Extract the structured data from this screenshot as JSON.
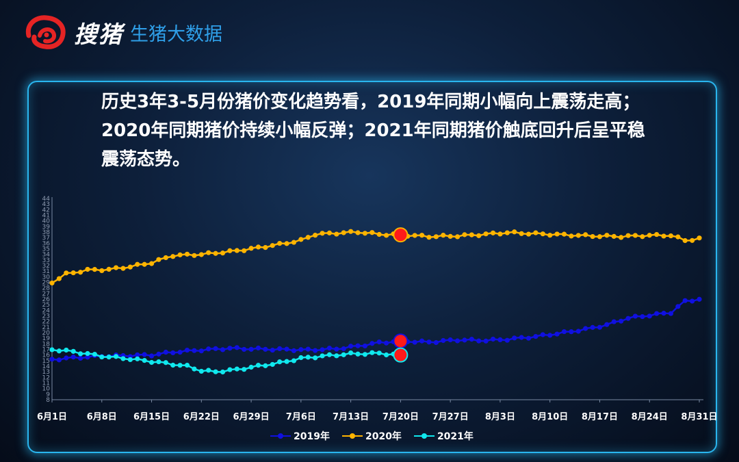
{
  "logo": {
    "name": "搜猪",
    "subtitle": "生猪大数据"
  },
  "headline": "历史3年3-5月份猪价变化趋势看，2019年同期小幅向上震荡走高；2020年同期猪价持续小幅反弹；2021年同期猪价触底回升后呈平稳震荡态势。",
  "chart_data": {
    "type": "line",
    "title": "",
    "xlabel": "",
    "ylabel": "",
    "ylim": [
      8,
      44
    ],
    "yticks": [
      8,
      9,
      10,
      11,
      12,
      13,
      14,
      15,
      16,
      17,
      18,
      19,
      20,
      21,
      22,
      23,
      24,
      25,
      26,
      27,
      28,
      29,
      30,
      31,
      32,
      33,
      34,
      35,
      36,
      37,
      38,
      39,
      40,
      41,
      42,
      43,
      44
    ],
    "xticks": [
      "6月1日",
      "6月8日",
      "6月15日",
      "6月22日",
      "6月29日",
      "7月6日",
      "7月13日",
      "7月20日",
      "7月27日",
      "8月3日",
      "8月10日",
      "8月17日",
      "8月24日",
      "8月31日"
    ],
    "day_count": 92,
    "grid": false,
    "legend_position": "bottom",
    "series": [
      {
        "name": "2019年",
        "color": "#1010e0",
        "marker": {
          "day_index": 49,
          "value": 18.5,
          "color": "#ff1a1a"
        },
        "key_points": [
          [
            0,
            15.2
          ],
          [
            3,
            15.5
          ],
          [
            7,
            15.8
          ],
          [
            11,
            15.9
          ],
          [
            14,
            16.0
          ],
          [
            17,
            16.5
          ],
          [
            21,
            16.9
          ],
          [
            25,
            17.2
          ],
          [
            28,
            17.1
          ],
          [
            32,
            17.0
          ],
          [
            36,
            16.9
          ],
          [
            40,
            17.1
          ],
          [
            43,
            17.6
          ],
          [
            46,
            18.2
          ],
          [
            49,
            18.5
          ],
          [
            53,
            18.3
          ],
          [
            57,
            18.7
          ],
          [
            61,
            18.6
          ],
          [
            64,
            18.8
          ],
          [
            68,
            19.3
          ],
          [
            72,
            20.0
          ],
          [
            75,
            20.6
          ],
          [
            78,
            21.4
          ],
          [
            81,
            22.6
          ],
          [
            84,
            23.1
          ],
          [
            87,
            23.6
          ],
          [
            89,
            25.6
          ],
          [
            91,
            26.0
          ]
        ]
      },
      {
        "name": "2020年",
        "color": "#ffb400",
        "marker": {
          "day_index": 49,
          "value": 37.5,
          "color": "#ff1a1a"
        },
        "key_points": [
          [
            0,
            29.0
          ],
          [
            2,
            30.5
          ],
          [
            5,
            31.2
          ],
          [
            8,
            31.3
          ],
          [
            11,
            31.8
          ],
          [
            14,
            32.5
          ],
          [
            17,
            33.8
          ],
          [
            21,
            34.0
          ],
          [
            25,
            34.5
          ],
          [
            28,
            35.0
          ],
          [
            32,
            35.8
          ],
          [
            35,
            36.5
          ],
          [
            37,
            37.6
          ],
          [
            40,
            37.8
          ],
          [
            43,
            38.0
          ],
          [
            46,
            37.6
          ],
          [
            49,
            37.5
          ],
          [
            53,
            37.2
          ],
          [
            57,
            37.3
          ],
          [
            61,
            37.6
          ],
          [
            64,
            37.9
          ],
          [
            68,
            37.7
          ],
          [
            72,
            37.5
          ],
          [
            76,
            37.3
          ],
          [
            80,
            37.2
          ],
          [
            84,
            37.4
          ],
          [
            87,
            37.4
          ],
          [
            89,
            36.5
          ],
          [
            91,
            36.8
          ]
        ]
      },
      {
        "name": "2021年",
        "color": "#10e8ee",
        "marker": {
          "day_index": 49,
          "value": 16.0,
          "color": "#ff1a1a"
        },
        "key_points": [
          [
            0,
            17.0
          ],
          [
            3,
            16.6
          ],
          [
            7,
            15.8
          ],
          [
            11,
            15.3
          ],
          [
            15,
            14.7
          ],
          [
            19,
            14.0
          ],
          [
            21,
            13.2
          ],
          [
            23,
            13.0
          ],
          [
            26,
            13.4
          ],
          [
            29,
            14.0
          ],
          [
            32,
            14.6
          ],
          [
            35,
            15.4
          ],
          [
            38,
            15.8
          ],
          [
            42,
            16.2
          ],
          [
            46,
            16.3
          ],
          [
            49,
            16.0
          ]
        ]
      }
    ]
  }
}
